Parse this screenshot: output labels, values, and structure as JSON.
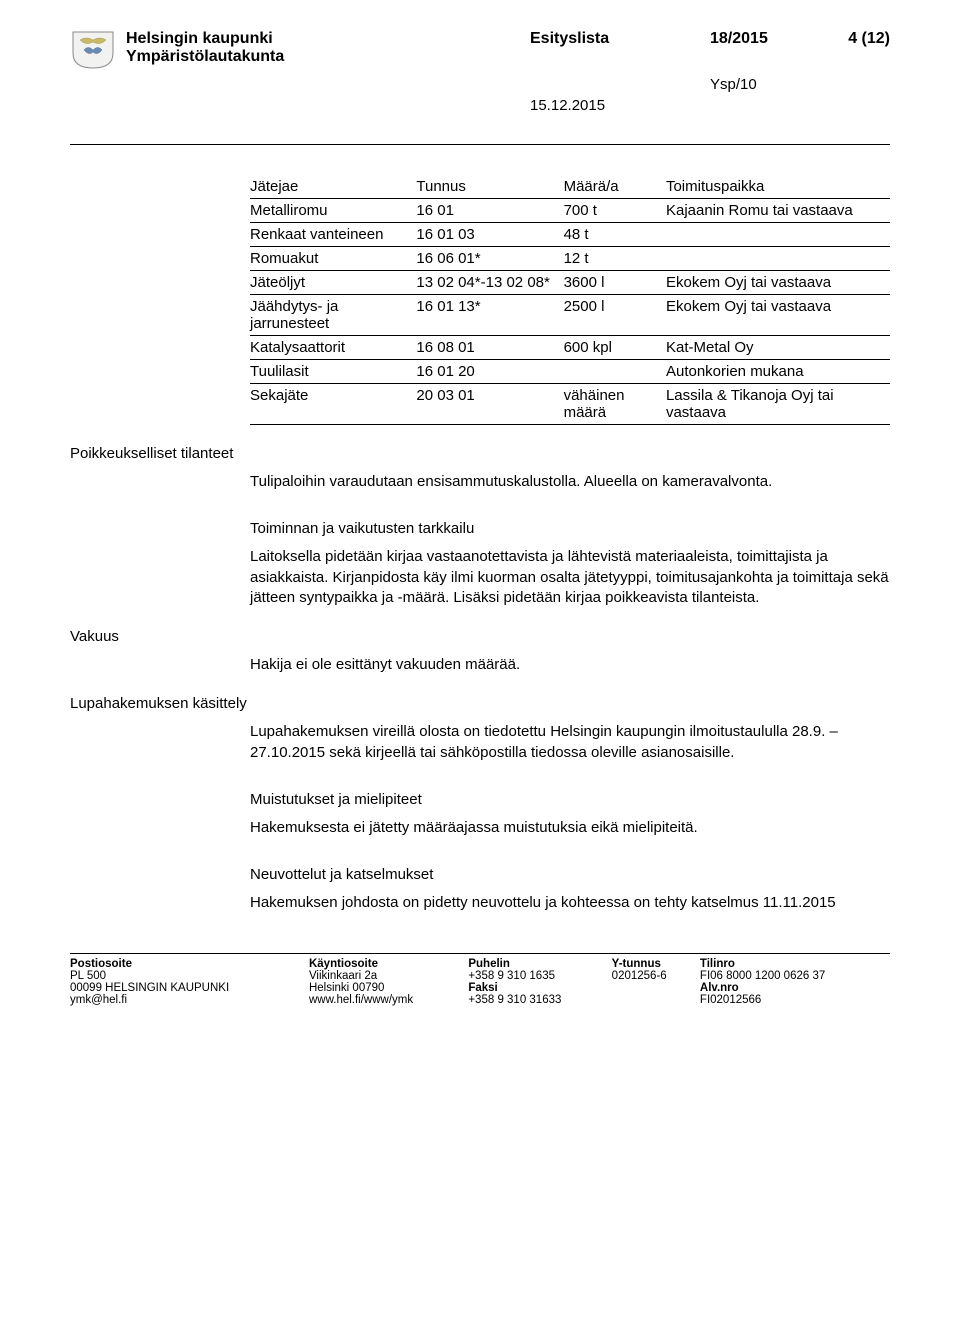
{
  "header": {
    "org": "Helsingin kaupunki",
    "board": "Ympäristölautakunta",
    "doc_type": "Esityslista",
    "doc_num": "18/2015",
    "page_of": "4 (12)",
    "ref": "Ysp/10",
    "date": "15.12.2015"
  },
  "waste_table": {
    "columns": [
      "Jätejae",
      "Tunnus",
      "Määrä/a",
      "Toimituspaikka"
    ],
    "rows": [
      [
        "Metalliromu",
        "16 01",
        "700 t",
        "Kajaanin Romu tai vastaava"
      ],
      [
        "Renkaat vanteineen",
        "16 01 03",
        "48 t",
        ""
      ],
      [
        "Romuakut",
        "16 06 01*",
        "12 t",
        ""
      ],
      [
        "Jäteöljyt",
        "13 02 04*-13 02 08*",
        "3600 l",
        "Ekokem Oyj tai vastaava"
      ],
      [
        "Jäähdytys- ja jarrunesteet",
        "16 01 13*",
        "2500 l",
        "Ekokem Oyj tai vastaava"
      ],
      [
        "Katalysaattorit",
        "16 08 01",
        "600 kpl",
        "Kat-Metal Oy"
      ],
      [
        "Tuulilasit",
        "16 01 20",
        "",
        "Autonkorien mukana"
      ],
      [
        "Sekajäte",
        "20 03 01",
        "vähäinen määrä",
        "Lassila & Tikanoja Oyj tai vastaava"
      ]
    ]
  },
  "sections": {
    "s1_title": "Poikkeukselliset tilanteet",
    "s1_p": "Tulipaloihin varaudutaan ensisammutuskalustolla. Alueella on kameravalvonta.",
    "s2_title": "Toiminnan ja vaikutusten tarkkailu",
    "s2_p": "Laitoksella pidetään kirjaa vastaanotettavista ja lähtevistä materiaaleista, toimittajista ja asiakkaista. Kirjanpidosta käy ilmi kuorman osalta jätetyyppi, toimitusajankohta ja toimittaja sekä jätteen syntypaikka ja -määrä. Lisäksi pidetään kirjaa poikkeavista tilanteista.",
    "s3_title": "Vakuus",
    "s3_p": "Hakija ei ole esittänyt vakuuden määrää.",
    "s4_title": "Lupahakemuksen käsittely",
    "s4_p": "Lupahakemuksen vireillä olosta on tiedotettu Helsingin kaupungin ilmoitustaululla 28.9. – 27.10.2015 sekä kirjeellä tai sähköpostilla tiedossa oleville asianosaisille.",
    "s5_title": "Muistutukset ja mielipiteet",
    "s5_p": "Hakemuksesta ei jätetty määräajassa muistutuksia eikä mielipiteitä.",
    "s6_title": "Neuvottelut ja katselmukset",
    "s6_p": "Hakemuksen johdosta on pidetty neuvottelu ja kohteessa on tehty katselmus 11.11.2015"
  },
  "footer": {
    "h1": "Postiosoite",
    "h2": "Käyntiosoite",
    "h3": "Puhelin",
    "h4": "Y-tunnus",
    "h5": "Tilinro",
    "r1c1": "PL 500",
    "r1c2": "Viikinkaari 2a",
    "r1c3": "+358 9 310 1635",
    "r1c4": "0201256-6",
    "r1c5": "FI06 8000 1200 0626 37",
    "r2c1": "00099 HELSINGIN KAUPUNKI",
    "r2c2": "Helsinki 00790",
    "r2c3": "Faksi",
    "r2c4": "",
    "r2c5": "Alv.nro",
    "r3c1": "ymk@hel.fi",
    "r3c2": "www.hel.fi/www/ymk",
    "r3c3": "+358 9 310 31633",
    "r3c4": "",
    "r3c5": "FI02012566"
  }
}
